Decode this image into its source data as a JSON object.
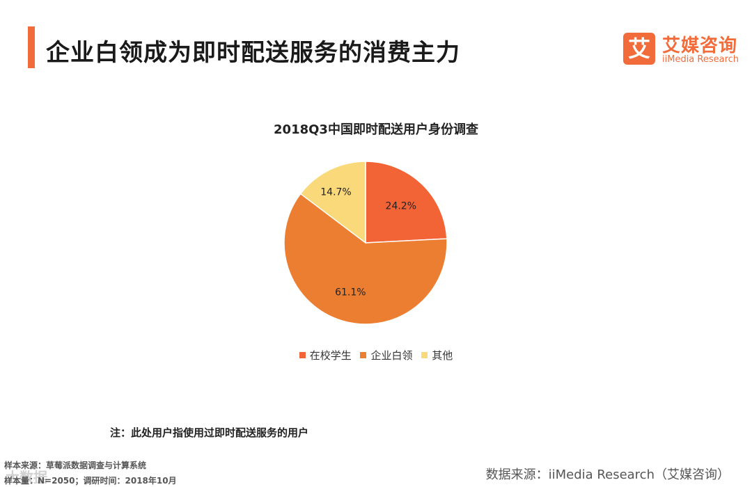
{
  "header": {
    "title": "企业白领成为即时配送服务的消费主力",
    "accent_color": "#f26b3a"
  },
  "logo": {
    "mark": "艾",
    "name_cn": "艾媒咨询",
    "name_en": "iiMedia Research"
  },
  "chart_data": {
    "type": "pie",
    "title": "2018Q3中国即时配送用户身份调查",
    "categories": [
      "在校学生",
      "企业白领",
      "其他"
    ],
    "values": [
      24.2,
      61.1,
      14.7
    ],
    "labels": [
      "24.2%",
      "61.1%",
      "14.7%"
    ],
    "colors": [
      "#f26336",
      "#ec7e32",
      "#f9d97a"
    ],
    "legend_position": "bottom"
  },
  "footer": {
    "note": "注：此处用户指使用过即时配送服务的用户",
    "sample_source": "样本来源：草莓派数据调查与计算系统",
    "sample_size": "样本量：N=2050；调研时间：2018年10月",
    "data_source": "数据来源：iiMedia Research（艾媒咨询）",
    "watermark": "大数据"
  }
}
